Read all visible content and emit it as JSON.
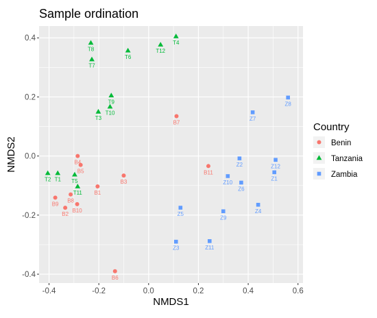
{
  "chart_data": {
    "type": "scatter",
    "title": "Sample ordination",
    "xlabel": "NMDS1",
    "ylabel": "NMDS2",
    "xlim": [
      -0.44,
      0.62
    ],
    "ylim": [
      -0.43,
      0.44
    ],
    "xticks": [
      -0.4,
      -0.2,
      0.0,
      0.2,
      0.4,
      0.6
    ],
    "xtick_labels": [
      "-0.4",
      "-0.2",
      "0.0",
      "0.2",
      "0.4",
      "0.6"
    ],
    "yticks": [
      -0.4,
      -0.2,
      0.0,
      0.2,
      0.4
    ],
    "yticks_labels": [
      "-0.4",
      "-0.2",
      "0.0",
      "0.2",
      "0.4"
    ],
    "grid": true,
    "legend": {
      "title": "Country",
      "position": "right"
    },
    "series": [
      {
        "name": "Benin",
        "shape": "circle",
        "color": "#F8766D",
        "points": [
          {
            "label": "B1",
            "x": -0.205,
            "y": -0.103
          },
          {
            "label": "B2",
            "x": -0.335,
            "y": -0.175
          },
          {
            "label": "B3",
            "x": -0.1,
            "y": -0.066
          },
          {
            "label": "B4",
            "x": -0.285,
            "y": 0.0
          },
          {
            "label": "B5",
            "x": -0.273,
            "y": -0.03
          },
          {
            "label": "B6",
            "x": -0.135,
            "y": -0.39
          },
          {
            "label": "B7",
            "x": 0.112,
            "y": 0.135
          },
          {
            "label": "B8",
            "x": -0.313,
            "y": -0.13
          },
          {
            "label": "B9",
            "x": -0.375,
            "y": -0.141
          },
          {
            "label": "B10",
            "x": -0.287,
            "y": -0.163
          },
          {
            "label": "B11",
            "x": 0.24,
            "y": -0.034
          }
        ]
      },
      {
        "name": "Tanzania",
        "shape": "triangle",
        "color": "#00BA38",
        "points": [
          {
            "label": "T1",
            "x": -0.365,
            "y": -0.058
          },
          {
            "label": "T2",
            "x": -0.405,
            "y": -0.058
          },
          {
            "label": "T3",
            "x": -0.202,
            "y": 0.15
          },
          {
            "label": "T4",
            "x": 0.11,
            "y": 0.405
          },
          {
            "label": "T5",
            "x": -0.297,
            "y": -0.063
          },
          {
            "label": "T6",
            "x": -0.083,
            "y": 0.357
          },
          {
            "label": "T7",
            "x": -0.228,
            "y": 0.327
          },
          {
            "label": "T8",
            "x": -0.232,
            "y": 0.383
          },
          {
            "label": "T9",
            "x": -0.15,
            "y": 0.205
          },
          {
            "label": "T10",
            "x": -0.155,
            "y": 0.167
          },
          {
            "label": "T11",
            "x": -0.285,
            "y": -0.103
          },
          {
            "label": "T12",
            "x": 0.048,
            "y": 0.377
          }
        ]
      },
      {
        "name": "Zambia",
        "shape": "square",
        "color": "#619CFF",
        "points": [
          {
            "label": "Z1",
            "x": 0.505,
            "y": -0.055
          },
          {
            "label": "Z2",
            "x": 0.365,
            "y": -0.008
          },
          {
            "label": "Z3",
            "x": 0.11,
            "y": -0.29
          },
          {
            "label": "Z4",
            "x": 0.44,
            "y": -0.165
          },
          {
            "label": "Z5",
            "x": 0.128,
            "y": -0.175
          },
          {
            "label": "Z6",
            "x": 0.372,
            "y": -0.09
          },
          {
            "label": "Z7",
            "x": 0.418,
            "y": 0.148
          },
          {
            "label": "Z8",
            "x": 0.56,
            "y": 0.198
          },
          {
            "label": "Z9",
            "x": 0.3,
            "y": -0.187
          },
          {
            "label": "Z10",
            "x": 0.318,
            "y": -0.068
          },
          {
            "label": "Z11",
            "x": 0.245,
            "y": -0.288
          },
          {
            "label": "Z12",
            "x": 0.51,
            "y": -0.013
          }
        ]
      }
    ]
  }
}
